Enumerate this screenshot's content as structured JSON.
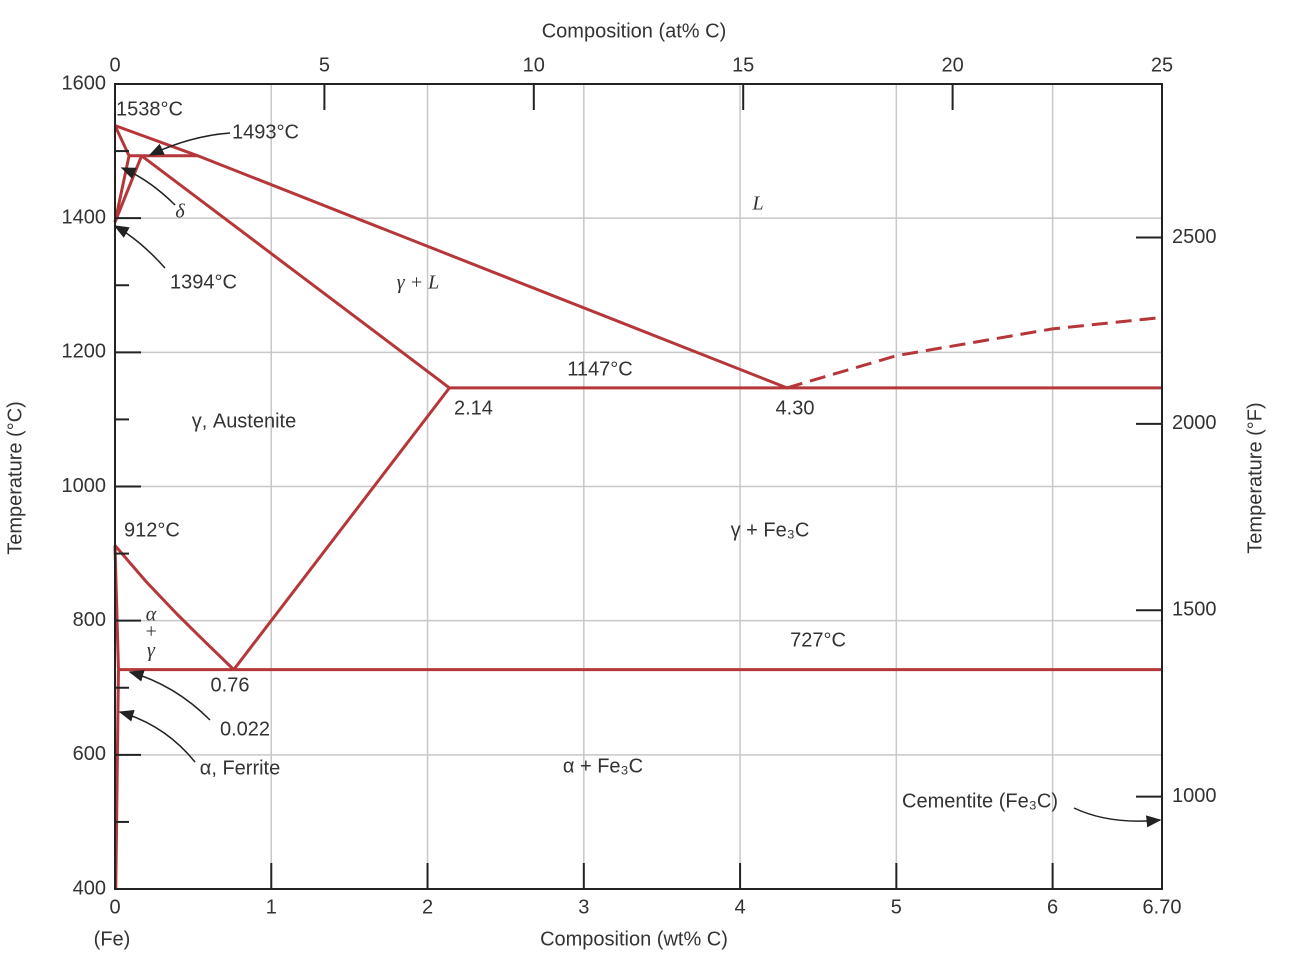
{
  "chart_data": {
    "type": "line",
    "xlabel": "Composition (wt% C)",
    "x_note": "(Fe)",
    "x2label": "Composition (at% C)",
    "ylabel": "Temperature (°C)",
    "y2label": "Temperature (°F)",
    "xlim": [
      0,
      6.7
    ],
    "xticks": [
      0,
      1,
      2,
      3,
      4,
      5,
      6,
      {
        "value": 6.7,
        "label": "6.70"
      }
    ],
    "x2lim": [
      0,
      25
    ],
    "x2ticks": [
      0,
      5,
      10,
      15,
      20,
      25
    ],
    "ylim": [
      400,
      1600
    ],
    "yticks": [
      400,
      600,
      800,
      1000,
      1200,
      1400,
      1600
    ],
    "yminorticks": [
      500,
      700,
      900,
      1100,
      1300,
      1500
    ],
    "y2lim": [
      752,
      2912
    ],
    "y2ticks": [
      1000,
      1500,
      2000,
      2500
    ],
    "grid": true,
    "series": [
      {
        "color": "#b5373a",
        "x": [
          0,
          0.53,
          4.3
        ],
        "values": [
          1538,
          1493,
          1147
        ]
      },
      {
        "color": "#b5373a",
        "x": [
          0,
          0.09
        ],
        "values": [
          1538,
          1493
        ]
      },
      {
        "color": "#b5373a",
        "x": [
          0,
          0.09
        ],
        "values": [
          1394,
          1493
        ]
      },
      {
        "color": "#b5373a",
        "x": [
          0,
          0.17
        ],
        "values": [
          1394,
          1493
        ]
      },
      {
        "color": "#b5373a",
        "x": [
          0.09,
          0.53
        ],
        "values": [
          1493,
          1493
        ]
      },
      {
        "color": "#b5373a",
        "x": [
          0.17,
          2.14
        ],
        "values": [
          1493,
          1147
        ]
      },
      {
        "color": "#b5373a",
        "x": [
          2.14,
          6.7
        ],
        "values": [
          1147,
          1147
        ]
      },
      {
        "color": "#b5373a",
        "dashed": true,
        "x": [
          4.3,
          5,
          6,
          6.7
        ],
        "values": [
          1147,
          1195,
          1235,
          1252
        ]
      },
      {
        "color": "#b5373a",
        "x": [
          2.14,
          0.76
        ],
        "values": [
          1147,
          727
        ]
      },
      {
        "color": "#b5373a",
        "x": [
          0,
          0.2,
          0.4,
          0.6,
          0.76
        ],
        "values": [
          912,
          858,
          809,
          763,
          727
        ]
      },
      {
        "color": "#b5373a",
        "x": [
          0,
          0.022
        ],
        "values": [
          912,
          727
        ]
      },
      {
        "color": "#b5373a",
        "x": [
          0.022,
          6.7
        ],
        "values": [
          727,
          727
        ]
      },
      {
        "color": "#b5373a",
        "x": [
          0.022,
          0.005
        ],
        "values": [
          727,
          400
        ]
      }
    ],
    "annotations": [
      "1538°C",
      "1493°C",
      "δ",
      "1394°C",
      "L",
      "γ + L",
      "1147°C",
      "2.14",
      "4.30",
      "γ, Austenite",
      "912°C",
      "γ + Fe₃C",
      "α",
      "+",
      "γ",
      "727°C",
      "0.76",
      "0.022",
      "α, Ferrite",
      "α + Fe₃C",
      "Cementite (Fe₃C)"
    ]
  }
}
